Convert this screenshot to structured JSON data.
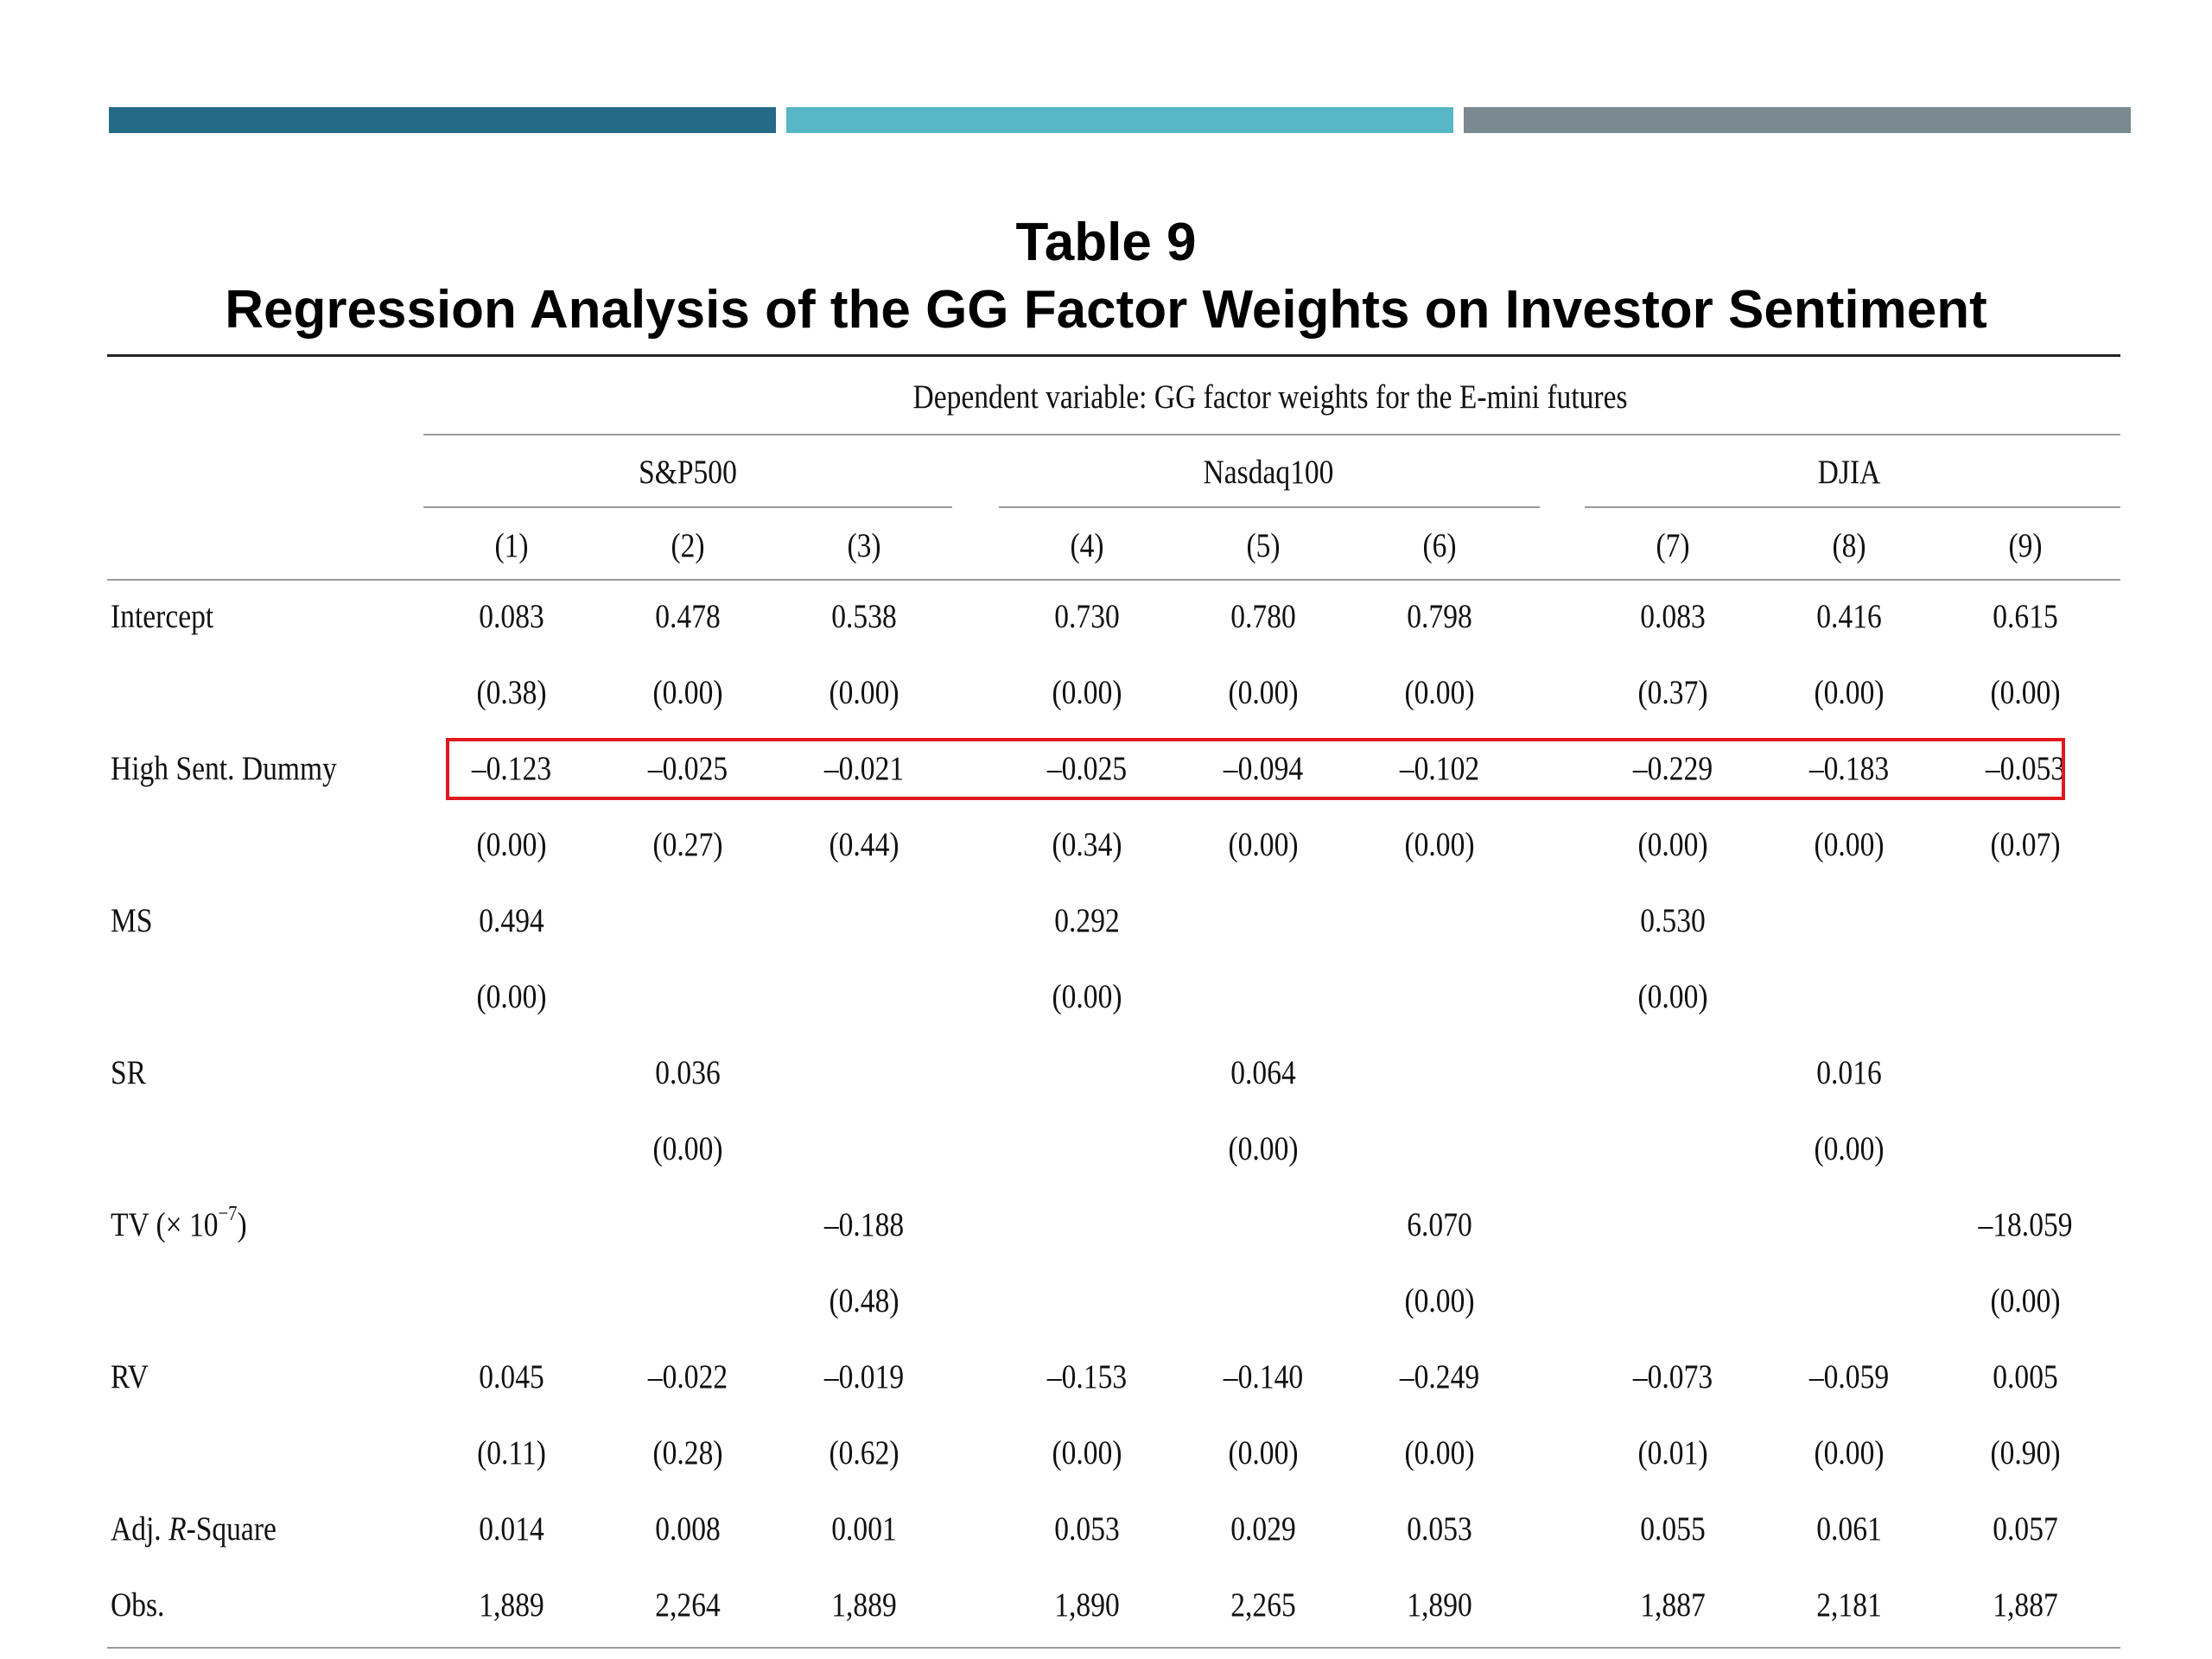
{
  "header_bar_colors": [
    "#256a86",
    "#57b7c6",
    "#7a8a90"
  ],
  "highlight_color": "#e0191e",
  "title": "Table 9",
  "subtitle": "Regression Analysis of the GG Factor Weights on Investor Sentiment",
  "dependent_variable": "Dependent variable: GG factor weights for the E-mini futures",
  "groups": [
    "S&P500",
    "Nasdaq100",
    "DJIA"
  ],
  "columns": [
    "(1)",
    "(2)",
    "(3)",
    "(4)",
    "(5)",
    "(6)",
    "(7)",
    "(8)",
    "(9)"
  ],
  "rows": [
    {
      "label": "Intercept",
      "values": [
        "0.083",
        "0.478",
        "0.538",
        "0.730",
        "0.780",
        "0.798",
        "0.083",
        "0.416",
        "0.615"
      ]
    },
    {
      "label": "",
      "values": [
        "(0.38)",
        "(0.00)",
        "(0.00)",
        "(0.00)",
        "(0.00)",
        "(0.00)",
        "(0.37)",
        "(0.00)",
        "(0.00)"
      ]
    },
    {
      "label": "High Sent. Dummy",
      "values": [
        "–0.123",
        "–0.025",
        "–0.021",
        "–0.025",
        "–0.094",
        "–0.102",
        "–0.229",
        "–0.183",
        "–0.053"
      ]
    },
    {
      "label": "",
      "values": [
        "(0.00)",
        "(0.27)",
        "(0.44)",
        "(0.34)",
        "(0.00)",
        "(0.00)",
        "(0.00)",
        "(0.00)",
        "(0.07)"
      ]
    },
    {
      "label": "MS",
      "values": [
        "0.494",
        "",
        "",
        "0.292",
        "",
        "",
        "0.530",
        "",
        ""
      ]
    },
    {
      "label": "",
      "values": [
        "(0.00)",
        "",
        "",
        "(0.00)",
        "",
        "",
        "(0.00)",
        "",
        ""
      ]
    },
    {
      "label": "SR",
      "values": [
        "",
        "0.036",
        "",
        "",
        "0.064",
        "",
        "",
        "0.016",
        ""
      ]
    },
    {
      "label": "",
      "values": [
        "",
        "(0.00)",
        "",
        "",
        "(0.00)",
        "",
        "",
        "(0.00)",
        ""
      ]
    },
    {
      "label": "TV  (× 10",
      "label_sup": "−7",
      "label_tail": ")",
      "values": [
        "",
        "",
        "–0.188",
        "",
        "",
        "6.070",
        "",
        "",
        "–18.059"
      ]
    },
    {
      "label": "",
      "values": [
        "",
        "",
        "(0.48)",
        "",
        "",
        "(0.00)",
        "",
        "",
        "(0.00)"
      ]
    },
    {
      "label": "RV",
      "values": [
        "0.045",
        "–0.022",
        "–0.019",
        "–0.153",
        "–0.140",
        "–0.249",
        "–0.073",
        "–0.059",
        "0.005"
      ]
    },
    {
      "label": "",
      "values": [
        "(0.11)",
        "(0.28)",
        "(0.62)",
        "(0.00)",
        "(0.00)",
        "(0.00)",
        "(0.01)",
        "(0.00)",
        "(0.90)"
      ]
    },
    {
      "label": "Adj. ",
      "label_italic": "R",
      "label_tail": "-Square",
      "values": [
        "0.014",
        "0.008",
        "0.001",
        "0.053",
        "0.029",
        "0.053",
        "0.055",
        "0.061",
        "0.057"
      ]
    },
    {
      "label": "Obs.",
      "values": [
        "1,889",
        "2,264",
        "1,889",
        "1,890",
        "2,265",
        "1,890",
        "1,887",
        "2,181",
        "1,887"
      ]
    }
  ]
}
